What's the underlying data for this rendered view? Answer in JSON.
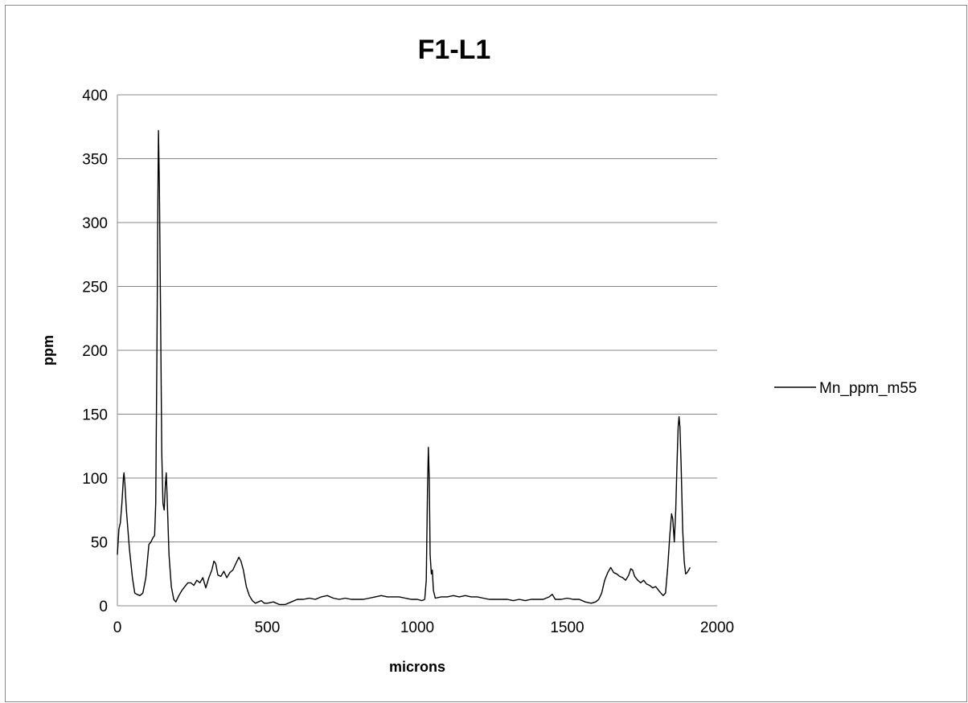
{
  "chart_data": {
    "type": "line",
    "title": "F1-L1",
    "xlabel": "microns",
    "ylabel": "ppm",
    "xlim": [
      0,
      2000
    ],
    "ylim": [
      0,
      400
    ],
    "x_ticks": [
      "0",
      "500",
      "1000",
      "1500",
      "2000"
    ],
    "y_ticks": [
      "0",
      "50",
      "100",
      "150",
      "200",
      "250",
      "300",
      "350",
      "400"
    ],
    "grid": "horizontal major gridlines",
    "legend_position": "right",
    "series": [
      {
        "name": "Mn_ppm_m55",
        "color": "#000000",
        "points": [
          [
            0,
            40
          ],
          [
            5,
            60
          ],
          [
            10,
            65
          ],
          [
            15,
            80
          ],
          [
            20,
            100
          ],
          [
            22,
            104
          ],
          [
            25,
            96
          ],
          [
            30,
            75
          ],
          [
            40,
            45
          ],
          [
            50,
            22
          ],
          [
            58,
            10
          ],
          [
            65,
            9
          ],
          [
            75,
            8
          ],
          [
            85,
            10
          ],
          [
            95,
            22
          ],
          [
            100,
            35
          ],
          [
            105,
            48
          ],
          [
            112,
            50
          ],
          [
            118,
            53
          ],
          [
            124,
            55
          ],
          [
            128,
            80
          ],
          [
            132,
            200
          ],
          [
            135,
            320
          ],
          [
            137,
            372
          ],
          [
            140,
            330
          ],
          [
            144,
            230
          ],
          [
            148,
            120
          ],
          [
            152,
            80
          ],
          [
            156,
            75
          ],
          [
            160,
            95
          ],
          [
            163,
            104
          ],
          [
            166,
            85
          ],
          [
            172,
            40
          ],
          [
            180,
            15
          ],
          [
            188,
            5
          ],
          [
            195,
            3
          ],
          [
            205,
            8
          ],
          [
            215,
            12
          ],
          [
            225,
            15
          ],
          [
            235,
            18
          ],
          [
            245,
            18
          ],
          [
            255,
            16
          ],
          [
            265,
            20
          ],
          [
            275,
            18
          ],
          [
            285,
            22
          ],
          [
            295,
            14
          ],
          [
            305,
            22
          ],
          [
            315,
            28
          ],
          [
            322,
            35
          ],
          [
            328,
            33
          ],
          [
            335,
            24
          ],
          [
            345,
            23
          ],
          [
            355,
            27
          ],
          [
            365,
            22
          ],
          [
            375,
            26
          ],
          [
            385,
            28
          ],
          [
            395,
            33
          ],
          [
            405,
            38
          ],
          [
            412,
            35
          ],
          [
            420,
            28
          ],
          [
            430,
            15
          ],
          [
            440,
            8
          ],
          [
            450,
            4
          ],
          [
            460,
            2
          ],
          [
            470,
            3
          ],
          [
            480,
            4
          ],
          [
            490,
            2
          ],
          [
            500,
            2
          ],
          [
            520,
            3
          ],
          [
            540,
            1
          ],
          [
            560,
            1
          ],
          [
            580,
            3
          ],
          [
            600,
            5
          ],
          [
            620,
            5
          ],
          [
            640,
            6
          ],
          [
            660,
            5
          ],
          [
            680,
            7
          ],
          [
            700,
            8
          ],
          [
            720,
            6
          ],
          [
            740,
            5
          ],
          [
            760,
            6
          ],
          [
            780,
            5
          ],
          [
            800,
            5
          ],
          [
            820,
            5
          ],
          [
            840,
            6
          ],
          [
            860,
            7
          ],
          [
            880,
            8
          ],
          [
            900,
            7
          ],
          [
            920,
            7
          ],
          [
            940,
            7
          ],
          [
            960,
            6
          ],
          [
            980,
            5
          ],
          [
            1000,
            5
          ],
          [
            1015,
            4
          ],
          [
            1025,
            5
          ],
          [
            1030,
            20
          ],
          [
            1034,
            90
          ],
          [
            1037,
            124
          ],
          [
            1040,
            100
          ],
          [
            1043,
            40
          ],
          [
            1047,
            25
          ],
          [
            1050,
            28
          ],
          [
            1054,
            12
          ],
          [
            1060,
            6
          ],
          [
            1080,
            7
          ],
          [
            1100,
            7
          ],
          [
            1120,
            8
          ],
          [
            1140,
            7
          ],
          [
            1160,
            8
          ],
          [
            1180,
            7
          ],
          [
            1200,
            7
          ],
          [
            1220,
            6
          ],
          [
            1240,
            5
          ],
          [
            1260,
            5
          ],
          [
            1280,
            5
          ],
          [
            1300,
            5
          ],
          [
            1320,
            4
          ],
          [
            1340,
            5
          ],
          [
            1360,
            4
          ],
          [
            1380,
            5
          ],
          [
            1400,
            5
          ],
          [
            1420,
            5
          ],
          [
            1440,
            7
          ],
          [
            1450,
            9
          ],
          [
            1460,
            5
          ],
          [
            1480,
            5
          ],
          [
            1500,
            6
          ],
          [
            1520,
            5
          ],
          [
            1540,
            5
          ],
          [
            1560,
            3
          ],
          [
            1580,
            2
          ],
          [
            1595,
            3
          ],
          [
            1605,
            5
          ],
          [
            1615,
            10
          ],
          [
            1625,
            20
          ],
          [
            1635,
            26
          ],
          [
            1645,
            30
          ],
          [
            1655,
            26
          ],
          [
            1665,
            25
          ],
          [
            1675,
            23
          ],
          [
            1685,
            22
          ],
          [
            1695,
            20
          ],
          [
            1705,
            24
          ],
          [
            1712,
            29
          ],
          [
            1718,
            28
          ],
          [
            1725,
            23
          ],
          [
            1735,
            20
          ],
          [
            1745,
            18
          ],
          [
            1755,
            20
          ],
          [
            1765,
            17
          ],
          [
            1775,
            16
          ],
          [
            1785,
            14
          ],
          [
            1795,
            15
          ],
          [
            1805,
            12
          ],
          [
            1812,
            10
          ],
          [
            1820,
            8
          ],
          [
            1828,
            10
          ],
          [
            1835,
            30
          ],
          [
            1842,
            55
          ],
          [
            1848,
            72
          ],
          [
            1852,
            68
          ],
          [
            1857,
            50
          ],
          [
            1862,
            75
          ],
          [
            1866,
            110
          ],
          [
            1870,
            140
          ],
          [
            1873,
            148
          ],
          [
            1876,
            140
          ],
          [
            1880,
            110
          ],
          [
            1885,
            60
          ],
          [
            1890,
            35
          ],
          [
            1895,
            25
          ],
          [
            1900,
            26
          ],
          [
            1905,
            28
          ],
          [
            1910,
            30
          ]
        ]
      }
    ]
  }
}
